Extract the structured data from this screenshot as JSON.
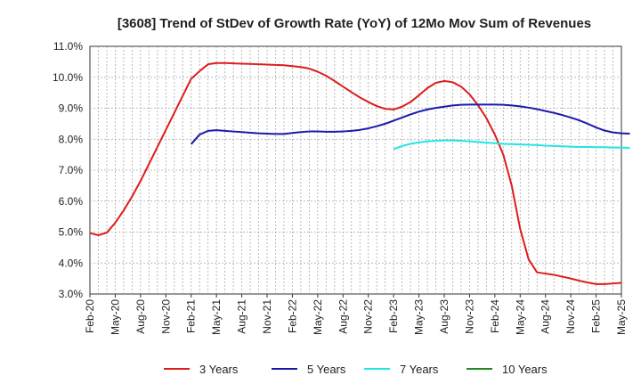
{
  "chart_data": {
    "type": "line",
    "title": "[3608]  Trend of StDev of Growth Rate (YoY) of 12Mo Mov Sum of Revenues",
    "xlabel": "",
    "ylabel": "",
    "ylim": [
      3.0,
      11.0
    ],
    "yticks": [
      "3.0%",
      "4.0%",
      "5.0%",
      "6.0%",
      "7.0%",
      "8.0%",
      "9.0%",
      "10.0%",
      "11.0%"
    ],
    "x_tick_labels": [
      "Feb-20",
      "May-20",
      "Aug-20",
      "Nov-20",
      "Feb-21",
      "May-21",
      "Aug-21",
      "Nov-21",
      "Feb-22",
      "May-22",
      "Aug-22",
      "Nov-22",
      "Feb-23",
      "May-23",
      "Aug-23",
      "Nov-23",
      "Feb-24",
      "May-24",
      "Aug-24",
      "Nov-24",
      "Feb-25",
      "May-25"
    ],
    "x_note": "x values are months elapsed since Feb-20",
    "grid": true,
    "legend_position": "bottom",
    "series": [
      {
        "name": "3 Years",
        "color": "#dd1c1c",
        "points": [
          [
            0,
            4.97
          ],
          [
            1,
            4.9
          ],
          [
            2,
            4.98
          ],
          [
            3,
            5.3
          ],
          [
            4,
            5.7
          ],
          [
            5,
            6.15
          ],
          [
            6,
            6.65
          ],
          [
            7,
            7.2
          ],
          [
            8,
            7.75
          ],
          [
            9,
            8.3
          ],
          [
            10,
            8.85
          ],
          [
            11,
            9.4
          ],
          [
            12,
            9.95
          ],
          [
            13,
            10.2
          ],
          [
            14,
            10.42
          ],
          [
            15,
            10.46
          ],
          [
            16,
            10.46
          ],
          [
            17,
            10.45
          ],
          [
            18,
            10.44
          ],
          [
            19,
            10.43
          ],
          [
            20,
            10.42
          ],
          [
            21,
            10.41
          ],
          [
            22,
            10.4
          ],
          [
            23,
            10.39
          ],
          [
            24,
            10.36
          ],
          [
            25,
            10.33
          ],
          [
            26,
            10.28
          ],
          [
            27,
            10.18
          ],
          [
            28,
            10.05
          ],
          [
            29,
            9.88
          ],
          [
            30,
            9.7
          ],
          [
            31,
            9.52
          ],
          [
            32,
            9.35
          ],
          [
            33,
            9.2
          ],
          [
            34,
            9.07
          ],
          [
            35,
            8.98
          ],
          [
            36,
            8.96
          ],
          [
            37,
            9.05
          ],
          [
            38,
            9.2
          ],
          [
            39,
            9.42
          ],
          [
            40,
            9.65
          ],
          [
            41,
            9.82
          ],
          [
            42,
            9.88
          ],
          [
            43,
            9.84
          ],
          [
            44,
            9.7
          ],
          [
            45,
            9.45
          ],
          [
            46,
            9.1
          ],
          [
            47,
            8.68
          ],
          [
            48,
            8.15
          ],
          [
            49,
            7.5
          ],
          [
            50,
            6.5
          ],
          [
            51,
            5.1
          ],
          [
            52,
            4.12
          ],
          [
            53,
            3.7
          ],
          [
            54,
            3.66
          ],
          [
            55,
            3.62
          ],
          [
            56,
            3.56
          ],
          [
            57,
            3.5
          ],
          [
            58,
            3.43
          ],
          [
            59,
            3.37
          ],
          [
            60,
            3.32
          ],
          [
            61,
            3.32
          ],
          [
            62,
            3.34
          ],
          [
            63,
            3.36
          ]
        ]
      },
      {
        "name": "5 Years",
        "color": "#1a1aaa",
        "points": [
          [
            12,
            7.84
          ],
          [
            13,
            8.15
          ],
          [
            14,
            8.27
          ],
          [
            15,
            8.29
          ],
          [
            16,
            8.27
          ],
          [
            17,
            8.25
          ],
          [
            18,
            8.23
          ],
          [
            19,
            8.21
          ],
          [
            20,
            8.19
          ],
          [
            21,
            8.18
          ],
          [
            22,
            8.17
          ],
          [
            23,
            8.17
          ],
          [
            24,
            8.2
          ],
          [
            25,
            8.23
          ],
          [
            26,
            8.25
          ],
          [
            27,
            8.25
          ],
          [
            28,
            8.24
          ],
          [
            29,
            8.24
          ],
          [
            30,
            8.25
          ],
          [
            31,
            8.27
          ],
          [
            32,
            8.3
          ],
          [
            33,
            8.35
          ],
          [
            34,
            8.42
          ],
          [
            35,
            8.5
          ],
          [
            36,
            8.6
          ],
          [
            37,
            8.7
          ],
          [
            38,
            8.8
          ],
          [
            39,
            8.89
          ],
          [
            40,
            8.96
          ],
          [
            41,
            9.01
          ],
          [
            42,
            9.05
          ],
          [
            43,
            9.09
          ],
          [
            44,
            9.11
          ],
          [
            45,
            9.12
          ],
          [
            46,
            9.12
          ],
          [
            47,
            9.12
          ],
          [
            48,
            9.12
          ],
          [
            49,
            9.11
          ],
          [
            50,
            9.09
          ],
          [
            51,
            9.06
          ],
          [
            52,
            9.02
          ],
          [
            53,
            8.97
          ],
          [
            54,
            8.91
          ],
          [
            55,
            8.85
          ],
          [
            56,
            8.78
          ],
          [
            57,
            8.7
          ],
          [
            58,
            8.61
          ],
          [
            59,
            8.5
          ],
          [
            60,
            8.38
          ],
          [
            61,
            8.28
          ],
          [
            62,
            8.22
          ],
          [
            63,
            8.19
          ],
          [
            64,
            8.18
          ]
        ]
      },
      {
        "name": "7 Years",
        "color": "#22e5e5",
        "points": [
          [
            36,
            7.68
          ],
          [
            37,
            7.78
          ],
          [
            38,
            7.85
          ],
          [
            39,
            7.9
          ],
          [
            40,
            7.93
          ],
          [
            41,
            7.95
          ],
          [
            42,
            7.96
          ],
          [
            43,
            7.96
          ],
          [
            44,
            7.95
          ],
          [
            45,
            7.93
          ],
          [
            46,
            7.91
          ],
          [
            47,
            7.89
          ],
          [
            48,
            7.87
          ],
          [
            49,
            7.85
          ],
          [
            50,
            7.84
          ],
          [
            51,
            7.83
          ],
          [
            52,
            7.82
          ],
          [
            53,
            7.81
          ],
          [
            54,
            7.79
          ],
          [
            55,
            7.78
          ],
          [
            56,
            7.77
          ],
          [
            57,
            7.76
          ],
          [
            58,
            7.75
          ],
          [
            59,
            7.75
          ],
          [
            60,
            7.74
          ],
          [
            61,
            7.74
          ],
          [
            62,
            7.73
          ],
          [
            63,
            7.73
          ],
          [
            64,
            7.72
          ]
        ]
      },
      {
        "name": "10 Years",
        "color": "#228822",
        "points": []
      }
    ]
  }
}
